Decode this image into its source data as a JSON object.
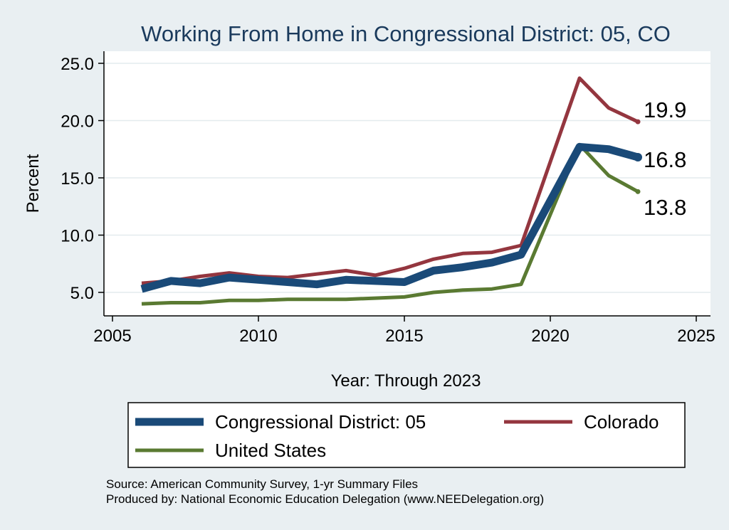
{
  "chart_data": {
    "type": "line",
    "title": "Working From Home in Congressional District: 05, CO",
    "xlabel": "Year: Through 2023",
    "ylabel": "Percent",
    "xlim": [
      2005,
      2025
    ],
    "ylim": [
      3,
      26
    ],
    "xticks": [
      2005,
      2010,
      2015,
      2020,
      2025
    ],
    "xtick_labels": [
      "2005",
      "2010",
      "2015",
      "2020",
      "2025"
    ],
    "yticks": [
      5,
      10,
      15,
      20,
      25
    ],
    "ytick_labels": [
      "5.0",
      "10.0",
      "15.0",
      "20.0",
      "25.0"
    ],
    "grid": true,
    "legend_position": "bottom",
    "x": [
      2006,
      2007,
      2008,
      2009,
      2010,
      2011,
      2012,
      2013,
      2014,
      2015,
      2016,
      2017,
      2018,
      2019,
      2021,
      2022,
      2023
    ],
    "series": [
      {
        "name": "Congressional District: 05",
        "color": "#1a4a78",
        "values": [
          5.3,
          6.0,
          5.8,
          6.3,
          6.1,
          5.9,
          5.7,
          6.1,
          6.0,
          5.9,
          6.9,
          7.2,
          7.6,
          8.3,
          17.7,
          17.5,
          16.8
        ],
        "end_label": "16.8"
      },
      {
        "name": "Colorado",
        "color": "#94363f",
        "values": [
          5.8,
          6.0,
          6.4,
          6.7,
          6.4,
          6.3,
          6.6,
          6.9,
          6.5,
          7.1,
          7.9,
          8.4,
          8.5,
          9.1,
          23.7,
          21.1,
          19.9
        ],
        "end_label": "19.9"
      },
      {
        "name": "United States",
        "color": "#5a7a32",
        "values": [
          4.0,
          4.1,
          4.1,
          4.3,
          4.3,
          4.4,
          4.4,
          4.4,
          4.5,
          4.6,
          5.0,
          5.2,
          5.3,
          5.7,
          17.9,
          15.2,
          13.8
        ],
        "end_label": "13.8"
      }
    ]
  },
  "source_line1": "Source: American Community Survey, 1-yr Summary Files",
  "source_line2": "Produced by: National Economic Education Delegation (www.NEEDelegation.org)"
}
